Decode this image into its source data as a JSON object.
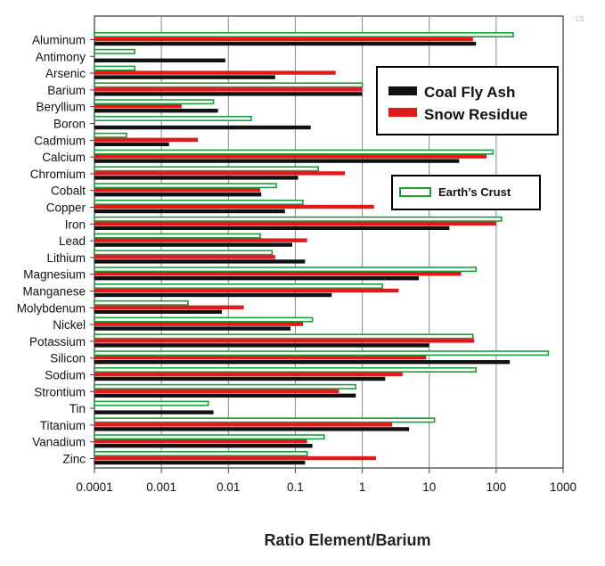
{
  "chart_data": {
    "type": "bar",
    "orientation": "horizontal",
    "xscale": "log",
    "xlim": [
      0.0001,
      1000
    ],
    "xticks": [
      "0.0001",
      "0.001",
      "0.01",
      "0.1",
      "1",
      "10",
      "100",
      "1000"
    ],
    "xlabel": "Ratio Element/Barium",
    "grid": "vertical lines at each decade",
    "categories": [
      "Aluminum",
      "Antimony",
      "Arsenic",
      "Barium",
      "Beryllium",
      "Boron",
      "Cadmium",
      "Calcium",
      "Chromium",
      "Cobalt",
      "Copper",
      "Iron",
      "Lead",
      "Lithium",
      "Magnesium",
      "Manganese",
      "Molybdenum",
      "Nickel",
      "Potassium",
      "Silicon",
      "Sodium",
      "Strontium",
      "Tin",
      "Titanium",
      "Vanadium",
      "Zinc"
    ],
    "series": [
      {
        "name": "Earth's Crust",
        "color": "#1a9e3c",
        "style": "outline",
        "values": [
          180,
          0.0004,
          0.0004,
          1,
          0.006,
          0.022,
          0.0003,
          90,
          0.22,
          0.052,
          0.13,
          120,
          0.03,
          0.045,
          50,
          2,
          0.0025,
          0.18,
          45,
          600,
          50,
          0.8,
          0.005,
          12,
          0.27,
          0.15
        ]
      },
      {
        "name": "Snow Residue",
        "color": "#e0191b",
        "style": "filled",
        "values": [
          45,
          null,
          0.4,
          1,
          0.002,
          null,
          0.0035,
          72,
          0.55,
          0.03,
          1.5,
          100,
          0.15,
          0.05,
          30,
          3.5,
          0.017,
          0.13,
          47,
          9,
          4,
          0.45,
          null,
          2.8,
          0.15,
          1.6
        ]
      },
      {
        "name": "Coal Fly Ash",
        "color": "#111111",
        "style": "filled",
        "values": [
          50,
          0.009,
          0.05,
          1,
          0.007,
          0.17,
          0.0013,
          28,
          0.11,
          0.031,
          0.07,
          20,
          0.09,
          0.14,
          7,
          0.35,
          0.008,
          0.085,
          10,
          160,
          2.2,
          0.8,
          0.006,
          5,
          0.18,
          0.14
        ]
      }
    ],
    "legend": {
      "main": [
        "Coal Fly Ash",
        "Snow Residue"
      ],
      "main_position": "top-right",
      "secondary": "Earth’s Crust",
      "secondary_position": "right"
    }
  },
  "stray_mark": "LS"
}
